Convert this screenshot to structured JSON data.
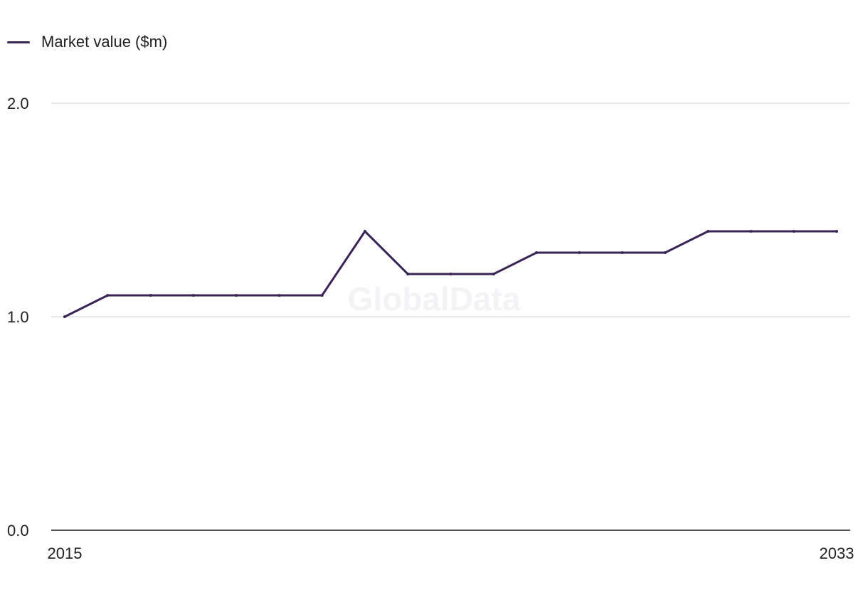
{
  "legend": {
    "label": "Market value ($m)"
  },
  "watermark": "GlobalData",
  "colors": {
    "series": "#3a2456",
    "grid": "#d9d9dd",
    "baseline": "#1a1a1a",
    "text": "#1f1f1f"
  },
  "chart_data": {
    "type": "line",
    "title": "",
    "xlabel": "",
    "ylabel": "",
    "x": [
      2015,
      2016,
      2017,
      2018,
      2019,
      2020,
      2021,
      2022,
      2023,
      2024,
      2025,
      2026,
      2027,
      2028,
      2029,
      2030,
      2031,
      2032,
      2033
    ],
    "x_tick_labels": [
      "2015",
      "2033"
    ],
    "y_tick_labels": [
      "0.0",
      "1.0",
      "2.0"
    ],
    "ylim": [
      0,
      2
    ],
    "grid": true,
    "legend_position": "top-left",
    "series": [
      {
        "name": "Market value ($m)",
        "values": [
          1.0,
          1.1,
          1.1,
          1.1,
          1.1,
          1.1,
          1.1,
          1.4,
          1.2,
          1.2,
          1.2,
          1.3,
          1.3,
          1.3,
          1.3,
          1.4,
          1.4,
          1.4,
          1.4
        ]
      }
    ]
  }
}
